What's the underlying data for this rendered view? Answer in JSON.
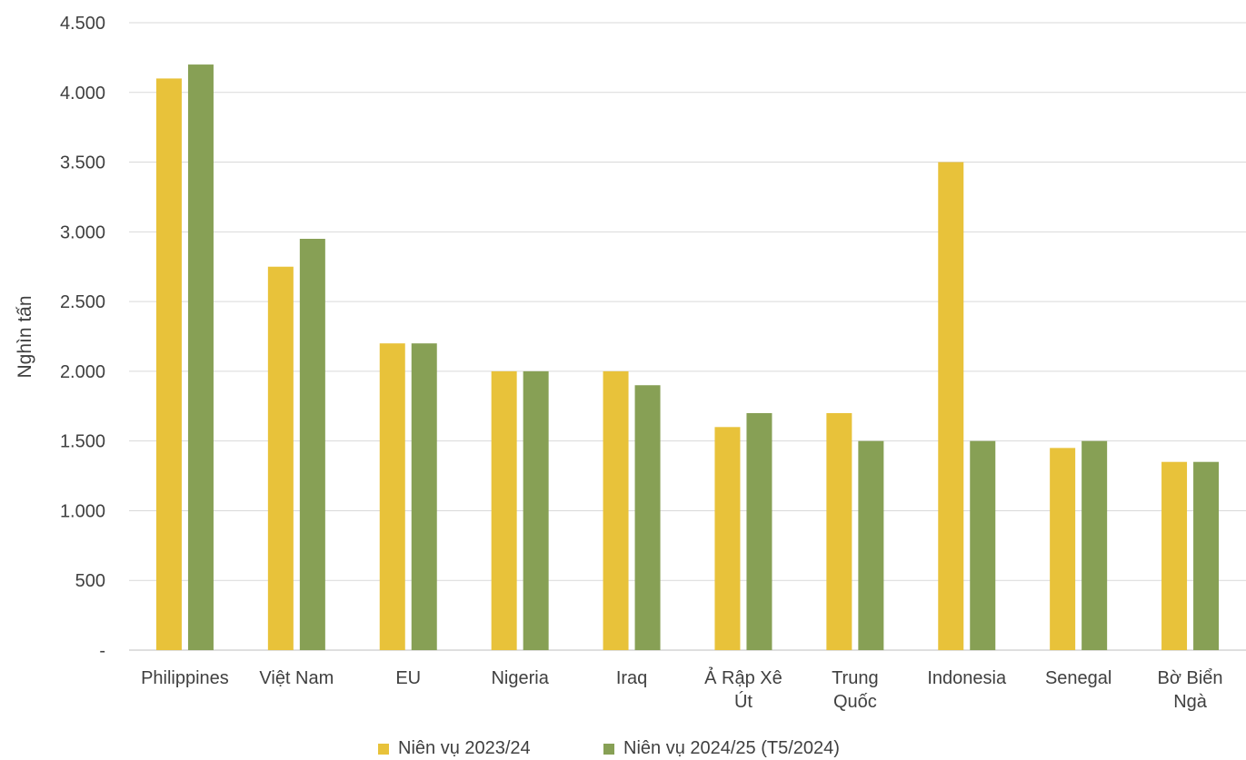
{
  "chart_data": {
    "type": "bar",
    "title": "",
    "xlabel": "",
    "ylabel": "Nghìn tấn",
    "ylim": [
      0,
      4500
    ],
    "yticks": [
      0,
      500,
      1000,
      1500,
      2000,
      2500,
      3000,
      3500,
      4000,
      4500
    ],
    "ytick_labels": [
      "-",
      "500",
      "1.000",
      "1.500",
      "2.000",
      "2.500",
      "3.000",
      "3.500",
      "4.000",
      "4.500"
    ],
    "grid": true,
    "legend_position": "bottom",
    "categories": [
      [
        "Philippines"
      ],
      [
        "Việt Nam"
      ],
      [
        "EU"
      ],
      [
        "Nigeria"
      ],
      [
        "Iraq"
      ],
      [
        "Ả Rập Xê",
        "Út"
      ],
      [
        "Trung",
        "Quốc"
      ],
      [
        "Indonesia"
      ],
      [
        "Senegal"
      ],
      [
        "Bờ Biển",
        "Ngà"
      ]
    ],
    "series": [
      {
        "name": "Niên vụ 2023/24",
        "color": "#E8C23A",
        "values": [
          4100,
          2750,
          2200,
          2000,
          2000,
          1600,
          1700,
          3500,
          1450,
          1350
        ]
      },
      {
        "name": "Niên vụ 2024/25 (T5/2024)",
        "color": "#87A055",
        "values": [
          4200,
          2950,
          2200,
          2000,
          1900,
          1700,
          1500,
          1500,
          1500,
          1350
        ]
      }
    ]
  }
}
